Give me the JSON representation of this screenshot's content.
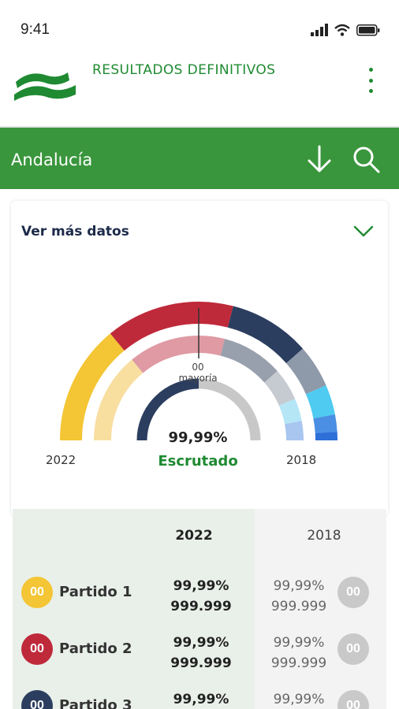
{
  "status_bar": {
    "time": "9:41"
  },
  "header": {
    "title": "RESULTADOS DEFINITIVOS",
    "menu_icon": "more-vert-icon"
  },
  "region_bar": {
    "region": "Andalucía",
    "download_icon": "arrow-down-icon",
    "search_icon": "search-icon"
  },
  "card": {
    "more_data_label": "Ver más datos",
    "chevron_icon": "chevron-down-icon",
    "year_current": "2022",
    "year_previous": "2018",
    "majority_value": "00",
    "majority_label": "mayoría",
    "scrutiny_pct": "99,99%",
    "scrutiny_label": "Escrutado",
    "scrutiny_fraction": 0.5
  },
  "chart_data": {
    "type": "hemicycle",
    "rings": [
      {
        "name": "2022",
        "segments": [
          {
            "share": 0.28,
            "color": "#f4c534"
          },
          {
            "share": 0.3,
            "color": "#bf2a3b"
          },
          {
            "share": 0.19,
            "color": "#2c3e5f"
          },
          {
            "share": 0.1,
            "color": "#8e99a9"
          },
          {
            "share": 0.07,
            "color": "#4fcaf1"
          },
          {
            "share": 0.04,
            "color": "#4a8fe3"
          },
          {
            "share": 0.02,
            "color": "#2f6fd8"
          }
        ]
      },
      {
        "name": "2018",
        "segments": [
          {
            "share": 0.28,
            "color": "#f8dfa0"
          },
          {
            "share": 0.3,
            "color": "#df9aa3"
          },
          {
            "share": 0.19,
            "color": "#98a0ad"
          },
          {
            "share": 0.1,
            "color": "#c6cad1"
          },
          {
            "share": 0.07,
            "color": "#b5e6f6"
          },
          {
            "share": 0.06,
            "color": "#a9c6f0"
          }
        ]
      }
    ]
  },
  "results": {
    "col_current": "2022",
    "col_previous": "2018",
    "rows": [
      {
        "seats": "00",
        "party": "Partido 1",
        "color": "#f4c534",
        "pct": "99,99%",
        "votes": "999.999",
        "prev_pct": "99,99%",
        "prev_votes": "999.999",
        "prev_seats": "00"
      },
      {
        "seats": "00",
        "party": "Partido 2",
        "color": "#bf2a3b",
        "pct": "99,99%",
        "votes": "999.999",
        "prev_pct": "99,99%",
        "prev_votes": "999.999",
        "prev_seats": "00"
      },
      {
        "seats": "00",
        "party": "Partido 3",
        "color": "#2c3e5f",
        "pct": "99,99%",
        "votes": "",
        "prev_pct": "99,99%",
        "prev_votes": "",
        "prev_seats": "00"
      }
    ]
  }
}
